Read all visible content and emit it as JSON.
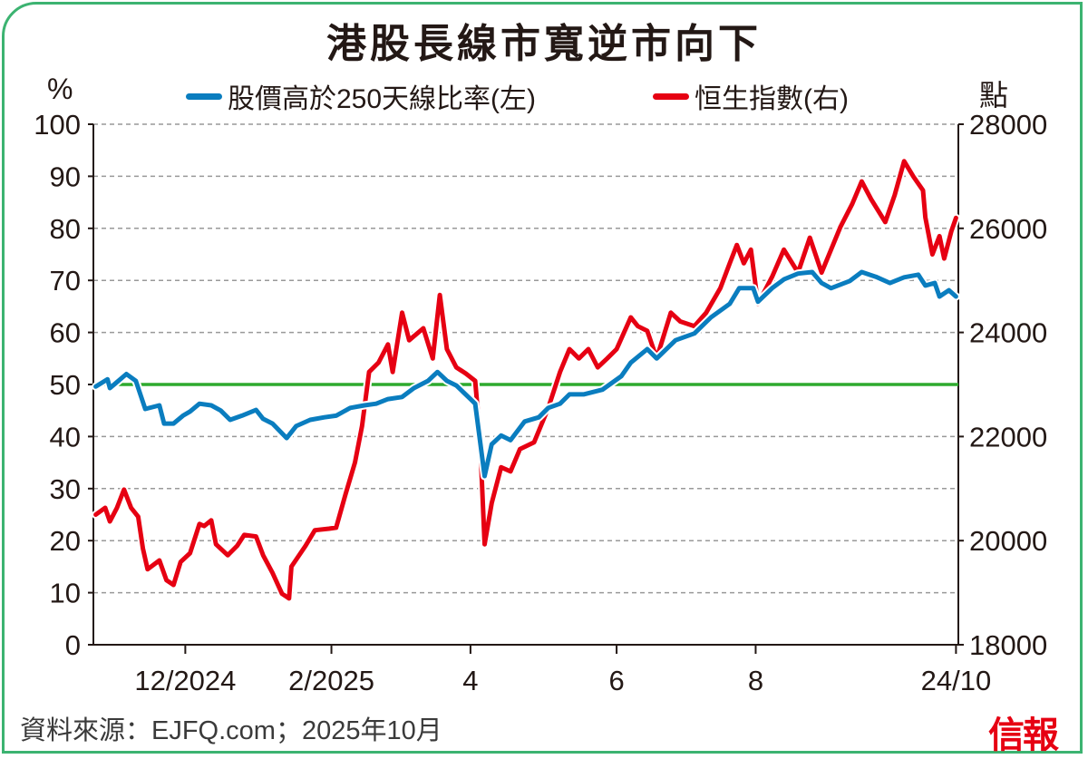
{
  "chart_data": {
    "type": "line",
    "title": "港股長線市寬逆市向下",
    "ylabel_left": "%",
    "ylabel_right": "點",
    "xlabel": "",
    "x_unit": "days since start of period",
    "xlim": [
      0,
      367
    ],
    "ylim_left": [
      0,
      100
    ],
    "ylim_right": [
      18000,
      28000
    ],
    "yticks_left": [
      "0",
      "10",
      "20",
      "30",
      "40",
      "50",
      "60",
      "70",
      "80",
      "90",
      "100"
    ],
    "yticks_right": [
      "18000",
      "20000",
      "22000",
      "24000",
      "26000",
      "28000"
    ],
    "xticks": [
      {
        "day": 39,
        "label": "12/2024"
      },
      {
        "day": 101,
        "label": "2/2025"
      },
      {
        "day": 160,
        "label": "4"
      },
      {
        "day": 222,
        "label": "6"
      },
      {
        "day": 281,
        "label": "8"
      },
      {
        "day": 366,
        "label": "24/10"
      }
    ],
    "grid": "horizontal dashed",
    "reference_line": {
      "axis": "left",
      "value": 50,
      "color": "#2eaa2e"
    },
    "legend_position": "top",
    "series": [
      {
        "name": "股價高於250天線比率(左)",
        "axis": "left",
        "color": "#0a7dbf",
        "x": [
          1,
          6,
          7,
          14,
          18,
          22,
          28,
          30,
          34,
          38,
          41,
          45,
          50,
          54,
          58,
          63,
          69,
          72,
          76,
          82,
          86,
          92,
          98,
          103,
          109,
          115,
          120,
          125,
          131,
          136,
          142,
          146,
          150,
          154,
          160,
          162,
          166,
          169,
          173,
          177,
          183,
          189,
          193,
          198,
          202,
          208,
          216,
          224,
          228,
          235,
          239,
          247,
          255,
          262,
          270,
          274,
          280,
          282,
          288,
          293,
          299,
          305,
          309,
          313,
          321,
          326,
          332,
          338,
          344,
          350,
          353,
          357,
          359,
          363,
          366
        ],
        "values": [
          49.6,
          51,
          49.3,
          52,
          50.7,
          45.3,
          46,
          42.5,
          42.5,
          44,
          44.8,
          46.3,
          46,
          45,
          43.2,
          44,
          45.1,
          43.4,
          42.5,
          39.7,
          42,
          43.2,
          43.7,
          44,
          45.5,
          46,
          46.3,
          47.2,
          47.6,
          49.3,
          50.7,
          52.4,
          50.7,
          49.8,
          47.2,
          46.3,
          32.4,
          38.5,
          40.2,
          39.3,
          42.9,
          43.7,
          45.5,
          46.3,
          48.1,
          48.1,
          49,
          51.6,
          54.2,
          56.8,
          55,
          58.5,
          59.8,
          62.9,
          65.5,
          68.5,
          68.5,
          65.9,
          68.5,
          70.2,
          71.3,
          71.6,
          69.5,
          68.5,
          69.9,
          71.6,
          70.7,
          69.5,
          70.6,
          71.1,
          69,
          69.5,
          66.9,
          68.1,
          66.9
        ]
      },
      {
        "name": "恒生指數(右)",
        "axis": "right",
        "color": "#e60012",
        "x": [
          1,
          5,
          7,
          10,
          13,
          16,
          19,
          21,
          23,
          28,
          31,
          34,
          37,
          41,
          45,
          47,
          50,
          52,
          57,
          61,
          64,
          69,
          72,
          76,
          80,
          83,
          84,
          90,
          94,
          100,
          103,
          107,
          111,
          114,
          117,
          121,
          125,
          127,
          131,
          134,
          140,
          144,
          147,
          150,
          154,
          158,
          162,
          164,
          166,
          169,
          173,
          177,
          181,
          187,
          193,
          198,
          202,
          206,
          210,
          214,
          218,
          222,
          228,
          231,
          235,
          239,
          245,
          249,
          255,
          260,
          266,
          270,
          273,
          276,
          279,
          282,
          288,
          293,
          299,
          304,
          309,
          313,
          317,
          322,
          326,
          330,
          336,
          340,
          344,
          348,
          352,
          353,
          356,
          359,
          361,
          364,
          366
        ],
        "values": [
          20500,
          20630,
          20370,
          20630,
          20980,
          20630,
          20460,
          19850,
          19450,
          19620,
          19240,
          19150,
          19590,
          19760,
          20320,
          20280,
          20390,
          19930,
          19720,
          19900,
          20110,
          20080,
          19720,
          19380,
          18980,
          18890,
          19500,
          19900,
          20200,
          20230,
          20250,
          20890,
          21500,
          22200,
          23240,
          23420,
          23770,
          23240,
          24380,
          23850,
          24080,
          23500,
          24720,
          23680,
          23330,
          23210,
          23070,
          22020,
          19930,
          20720,
          21410,
          21330,
          21760,
          21890,
          22550,
          23240,
          23680,
          23500,
          23680,
          23330,
          23500,
          23680,
          24290,
          24120,
          24030,
          23500,
          24380,
          24210,
          24120,
          24380,
          24850,
          25330,
          25680,
          25330,
          25590,
          24550,
          25070,
          25590,
          25150,
          25820,
          25150,
          25590,
          26030,
          26470,
          26900,
          26560,
          26120,
          26640,
          27290,
          26990,
          26730,
          26210,
          25500,
          25850,
          25420,
          25940,
          26200
        ]
      }
    ]
  },
  "legend": {
    "blue_label": "股價高於250天線比率(左)",
    "red_label": "恒生指數(右)"
  },
  "footer": {
    "source": "資料來源：EJFQ.com；2025年10月",
    "logo": "信報"
  }
}
